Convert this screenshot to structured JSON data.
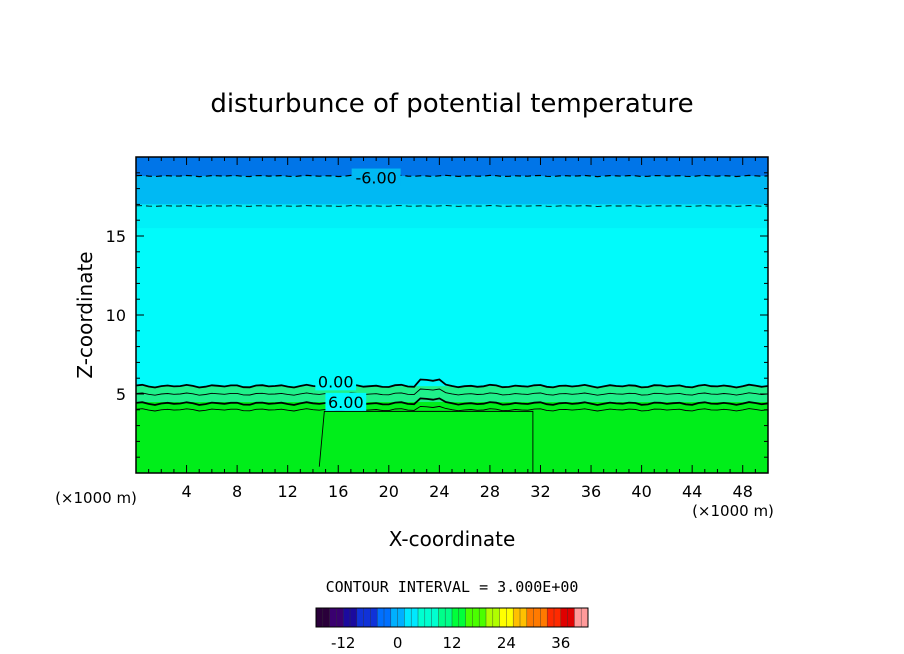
{
  "chart_data": {
    "type": "heatmap",
    "title": "disturbunce of potential temperature",
    "xlabel": "X-coordinate",
    "ylabel": "Z-coordinate",
    "x_unit_left": "(×1000 m)",
    "x_unit_right": "(×1000 m)",
    "xlim": [
      0,
      50
    ],
    "ylim": [
      0,
      20
    ],
    "x_ticks": [
      4,
      8,
      12,
      16,
      20,
      24,
      28,
      32,
      36,
      40,
      44,
      48
    ],
    "y_ticks": [
      5,
      10,
      15
    ],
    "contour_interval_text": "CONTOUR INTERVAL = 3.000E+00",
    "contour_labels": [
      {
        "text": "-6.00",
        "x": 19.0,
        "z": 18.7
      },
      {
        "text": "0.00",
        "x": 15.8,
        "z": 5.8
      },
      {
        "text": "6.00",
        "x": 16.6,
        "z": 4.5
      }
    ],
    "colorbar": {
      "range": [
        -18,
        42
      ],
      "ticks": [
        -12,
        0,
        12,
        24,
        36
      ]
    },
    "field_bands": [
      {
        "from_z": 0,
        "to_z": 4.5,
        "color": "#00ee1a"
      },
      {
        "from_z": 4.5,
        "to_z": 5.5,
        "color": "#1ff08a"
      },
      {
        "from_z": 5.5,
        "to_z": 15.5,
        "color": "#00fbfb"
      },
      {
        "from_z": 15.5,
        "to_z": 17.0,
        "color": "#00f0f8"
      },
      {
        "from_z": 17.0,
        "to_z": 18.8,
        "color": "#00b9f3"
      },
      {
        "from_z": 18.8,
        "to_z": 20.0,
        "color": "#0075e8"
      }
    ]
  }
}
